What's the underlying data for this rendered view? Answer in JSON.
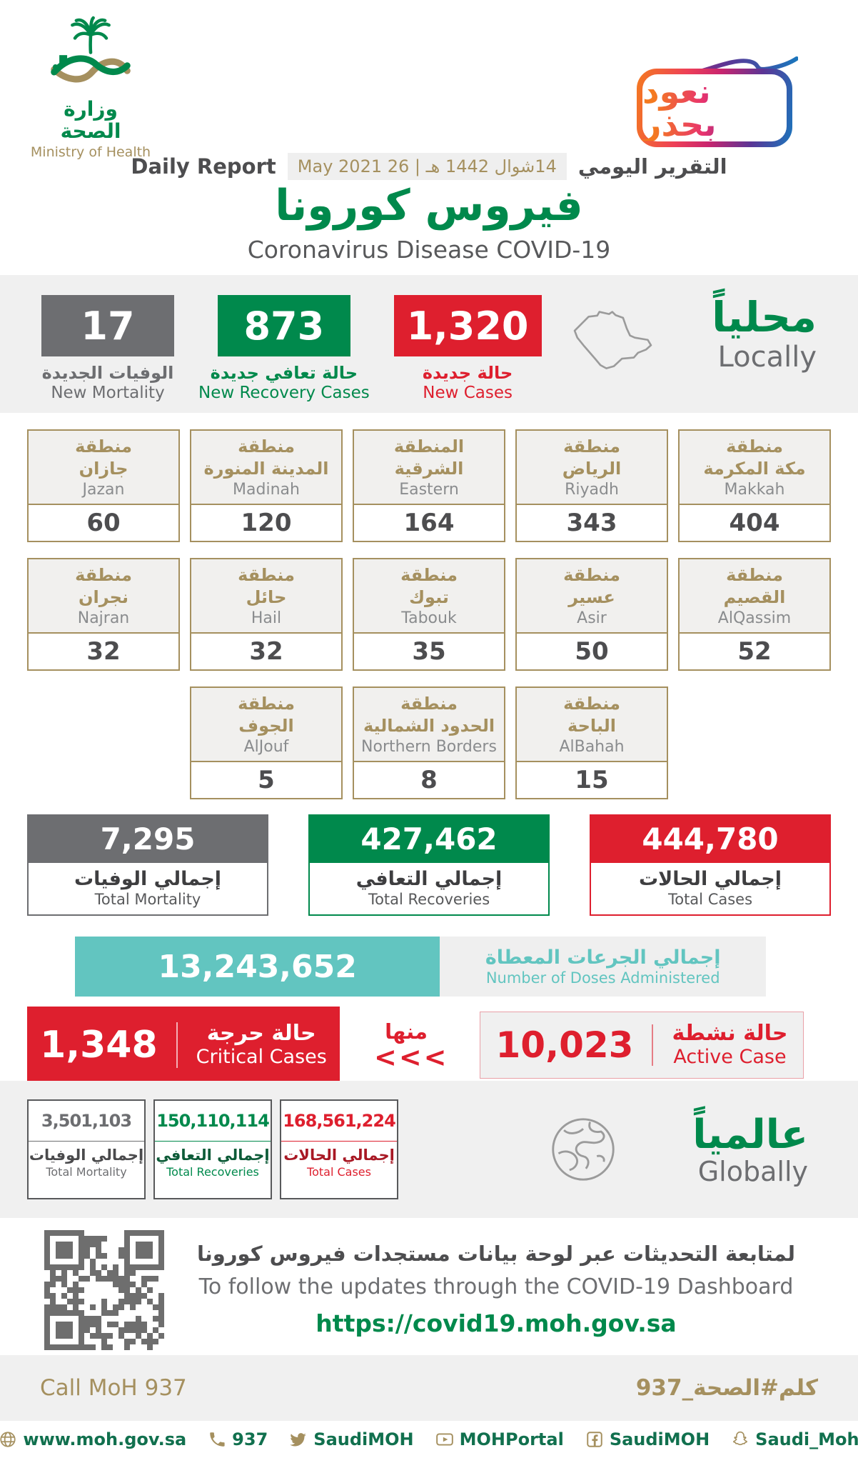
{
  "colors": {
    "green": "#00894C",
    "red": "#DE1F2E",
    "gray": "#6D6E71",
    "tan": "#A5905F",
    "teal": "#62C5C0",
    "band": "#F0F0F0"
  },
  "header": {
    "ministry_ar": "وزارة الصحة",
    "ministry_en": "Ministry of Health",
    "badge_text": "نعود بحذر",
    "report_label_en": "Daily Report",
    "report_label_ar": "التقرير اليومي",
    "date_chip": "14شوال 1442 هـ | 26 May 2021",
    "title_ar": "فيروس كورونا",
    "title_en": "Coronavirus Disease COVID-19"
  },
  "locally": {
    "label_ar": "محلياً",
    "label_en": "Locally",
    "stats": [
      {
        "value": "17",
        "label_ar": "الوفيات الجديدة",
        "label_en": "New Mortality"
      },
      {
        "value": "873",
        "label_ar": "حالة تعافي جديدة",
        "label_en": "New Recovery Cases"
      },
      {
        "value": "1,320",
        "label_ar": "حالة جديدة",
        "label_en": "New Cases"
      }
    ]
  },
  "regions": [
    {
      "ar1": "منطقة",
      "ar2": "جازان",
      "en": "Jazan",
      "value": "60"
    },
    {
      "ar1": "منطقة",
      "ar2": "المدينة المنورة",
      "en": "Madinah",
      "value": "120"
    },
    {
      "ar1": "المنطقة",
      "ar2": "الشرقية",
      "en": "Eastern",
      "value": "164"
    },
    {
      "ar1": "منطقة",
      "ar2": "الرياض",
      "en": "Riyadh",
      "value": "343"
    },
    {
      "ar1": "منطقة",
      "ar2": "مكة المكرمة",
      "en": "Makkah",
      "value": "404"
    },
    {
      "ar1": "منطقة",
      "ar2": "نجران",
      "en": "Najran",
      "value": "32"
    },
    {
      "ar1": "منطقة",
      "ar2": "حائل",
      "en": "Hail",
      "value": "32"
    },
    {
      "ar1": "منطقة",
      "ar2": "تبوك",
      "en": "Tabouk",
      "value": "35"
    },
    {
      "ar1": "منطقة",
      "ar2": "عسير",
      "en": "Asir",
      "value": "50"
    },
    {
      "ar1": "منطقة",
      "ar2": "القصيم",
      "en": "AlQassim",
      "value": "52"
    },
    {
      "ar1": "منطقة",
      "ar2": "الجوف",
      "en": "AlJouf",
      "value": "5"
    },
    {
      "ar1": "منطقة",
      "ar2": "الحدود الشمالية",
      "en": "Northern Borders",
      "value": "8"
    },
    {
      "ar1": "منطقة",
      "ar2": "الباحة",
      "en": "AlBahah",
      "value": "15"
    }
  ],
  "totals": [
    {
      "value": "7,295",
      "label_ar": "إجمالي الوفيات",
      "label_en": "Total Mortality"
    },
    {
      "value": "427,462",
      "label_ar": "إجمالي التعافي",
      "label_en": "Total Recoveries"
    },
    {
      "value": "444,780",
      "label_ar": "إجمالي الحالات",
      "label_en": "Total Cases"
    }
  ],
  "doses": {
    "value": "13,243,652",
    "label_ar": "إجمالي الجرعات المعطاة",
    "label_en": "Number of Doses Administered"
  },
  "critical": {
    "value": "1,348",
    "label_ar": "حالة حرجة",
    "label_en": "Critical Cases"
  },
  "of_which": {
    "label_ar": "منها",
    "arrows": "<<<"
  },
  "active": {
    "value": "10,023",
    "label_ar": "حالة نشطة",
    "label_en": "Active Case"
  },
  "global": {
    "label_ar": "عالمياً",
    "label_en": "Globally",
    "stats": [
      {
        "value": "3,501,103",
        "label_ar": "إجمالي الوفيات",
        "label_en": "Total Mortality"
      },
      {
        "value": "150,110,114",
        "label_ar": "إجمالي التعافي",
        "label_en": "Total Recoveries"
      },
      {
        "value": "168,561,224",
        "label_ar": "إجمالي الحالات",
        "label_en": "Total Cases"
      }
    ]
  },
  "dashboard": {
    "text_ar": "لمتابعة التحديثات عبر لوحة بيانات مستجدات فيروس كورونا",
    "text_en": "To follow the updates through the COVID-19 Dashboard",
    "url": "https://covid19.moh.gov.sa"
  },
  "footer": {
    "call_en": "Call MoH 937",
    "hashtag_ar": "كلم#الصحة_937"
  },
  "social": {
    "items": [
      {
        "icon": "globe-icon",
        "label": "www.moh.gov.sa"
      },
      {
        "icon": "phone-icon",
        "label": "937"
      },
      {
        "icon": "twitter-icon",
        "label": "SaudiMOH"
      },
      {
        "icon": "youtube-icon",
        "label": "MOHPortal"
      },
      {
        "icon": "facebook-icon",
        "label": "SaudiMOH"
      },
      {
        "icon": "snapchat-icon",
        "label": "Saudi_Moh"
      }
    ]
  }
}
